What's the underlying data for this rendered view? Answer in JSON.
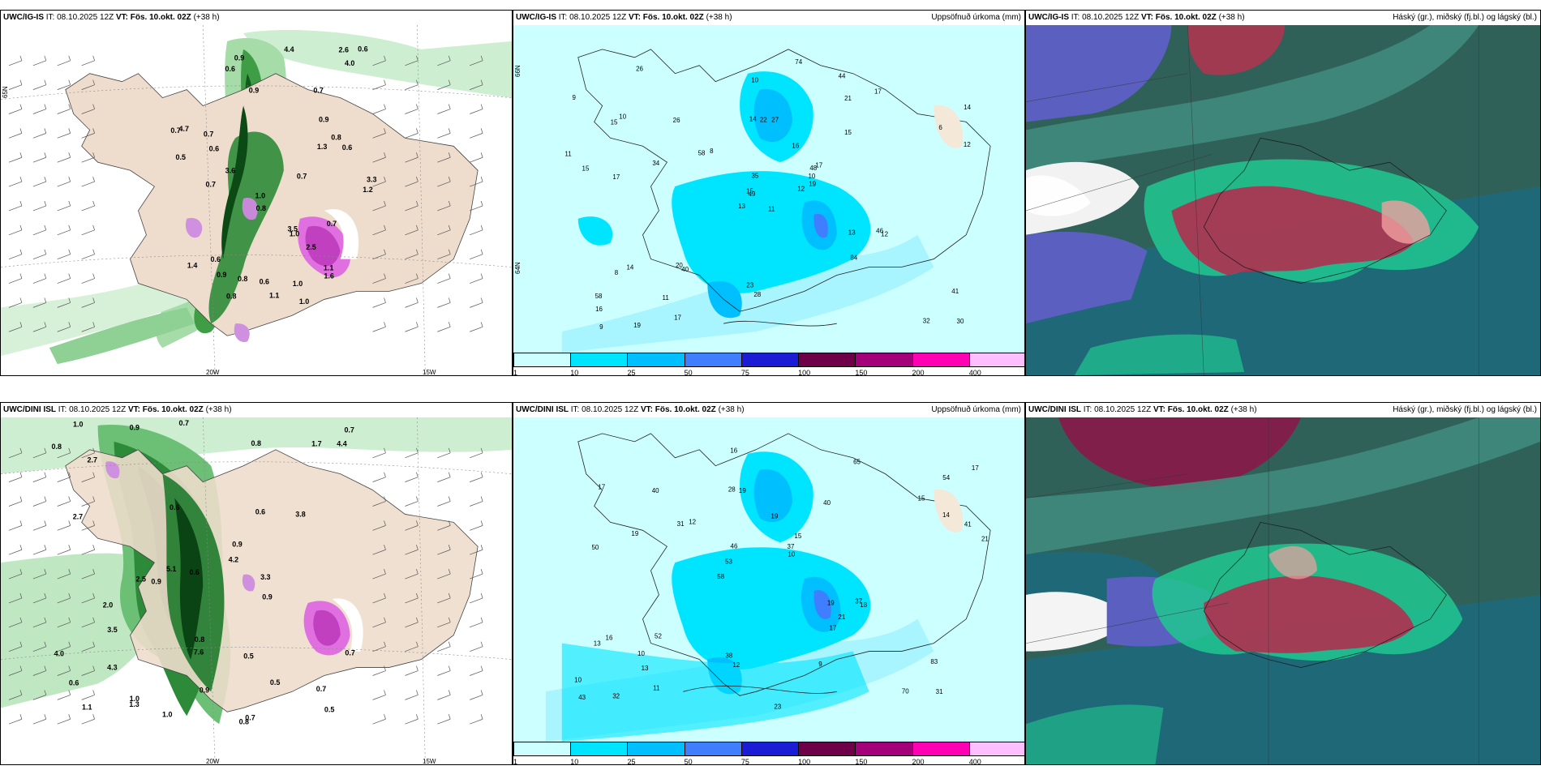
{
  "panels": {
    "top_left": {
      "model": "UWC/IG-IS",
      "it_label": "IT:",
      "it_value": "08.10.2025 12Z",
      "vt_label": "VT:",
      "vt_value": "Fös. 10.okt. 02Z",
      "lead": "(+38 h)",
      "right_title": ""
    },
    "top_mid": {
      "model": "UWC/IG-IS",
      "it_label": "IT:",
      "it_value": "08.10.2025 12Z",
      "vt_label": "VT:",
      "vt_value": "Fös. 10.okt. 02Z",
      "lead": "(+38 h)",
      "right_title": "Uppsöfnuð úrkoma (mm)"
    },
    "top_right": {
      "model": "UWC/IG-IS",
      "it_label": "IT:",
      "it_value": "08.10.2025 12Z",
      "vt_label": "VT:",
      "vt_value": "Fös. 10.okt. 02Z",
      "lead": "(+38 h)",
      "right_title": "Háský (gr.), miðský (fj.bl.) og lágský (bl.)"
    },
    "bot_left": {
      "model": "UWC/DINI ISL",
      "it_label": "IT:",
      "it_value": "08.10.2025 12Z",
      "vt_label": "VT:",
      "vt_value": "Fös. 10.okt. 02Z",
      "lead": "(+38 h)",
      "right_title": ""
    },
    "bot_mid": {
      "model": "UWC/DINI ISL",
      "it_label": "IT:",
      "it_value": "08.10.2025 12Z",
      "vt_label": "VT:",
      "vt_value": "Fös. 10.okt. 02Z",
      "lead": "(+38 h)",
      "right_title": "Uppsöfnuð úrkoma (mm)"
    },
    "bot_right": {
      "model": "UWC/DINI ISL",
      "it_label": "IT:",
      "it_value": "08.10.2025 12Z",
      "vt_label": "VT:",
      "vt_value": "Fös. 10.okt. 02Z",
      "lead": "(+38 h)",
      "right_title": "Háský (gr.), miðský (fj.bl.) og lágský (bl.)"
    }
  },
  "axes": {
    "lon_20w": "20W",
    "lon_15w": "15W",
    "lat_65n": "65N",
    "lat_64n": "64N",
    "lat_66n": "66N"
  },
  "precip_legend": {
    "ticks": [
      "1",
      "10",
      "25",
      "50",
      "75",
      "100",
      "150",
      "200",
      "400"
    ],
    "colors": [
      "#ccffff",
      "#00e5ff",
      "#00bfff",
      "#3f7fff",
      "#1c1cd6",
      "#6e0047",
      "#a3007a",
      "#ff00b3",
      "#ffbfff"
    ]
  },
  "precip_labels_top": [
    "11",
    "15",
    "49",
    "58",
    "48",
    "40",
    "44",
    "27",
    "21",
    "12",
    "26",
    "30",
    "17",
    "14",
    "13",
    "15",
    "19",
    "14",
    "16",
    "14",
    "8",
    "16",
    "11",
    "22",
    "17",
    "12",
    "10",
    "10",
    "15",
    "13",
    "12",
    "15",
    "23",
    "35",
    "26",
    "17",
    "20",
    "32",
    "41",
    "46",
    "74",
    "58",
    "34",
    "84",
    "17",
    "11",
    "10",
    "9",
    "28",
    "19",
    "8",
    "6",
    "9"
  ],
  "precip_labels_bot": [
    "31",
    "50",
    "54",
    "58",
    "40",
    "32",
    "28",
    "19",
    "16",
    "12",
    "10",
    "13",
    "19",
    "15",
    "18",
    "17",
    "16",
    "21",
    "19",
    "14",
    "53",
    "38",
    "46",
    "40",
    "65",
    "52",
    "70",
    "83",
    "37",
    "23",
    "31",
    "19",
    "17",
    "11",
    "41",
    "37",
    "43",
    "12",
    "10",
    "13",
    "15",
    "17",
    "21",
    "9",
    "10"
  ],
  "wind_vals_top": [
    "1.0",
    "0.6",
    "0.6",
    "0.7",
    "0.8",
    "1.0",
    "1.2",
    "3.6",
    "0.8",
    "0.9",
    "1.4",
    "0.7",
    "1.0",
    "3.5",
    "1.3",
    "2.6",
    "0.5",
    "4.0",
    "0.7",
    "0.6",
    "1.1",
    "1.0",
    "0.8",
    "1.6",
    "0.7",
    "0.9",
    "0.7",
    "0.6",
    "1.1",
    "0.9",
    "2.5",
    "0.6",
    "0.7",
    "0.8",
    "0.9",
    "0.6",
    "4.4",
    "4.7",
    "3.3"
  ],
  "wind_vals_bot": [
    "1.0",
    "0.8",
    "1.0",
    "0.5",
    "0.9",
    "2.7",
    "2.5",
    "0.5",
    "0.7",
    "0.6",
    "1.7",
    "0.9",
    "5.1",
    "7.6",
    "0.8",
    "4.2",
    "2.7",
    "1.3",
    "0.9",
    "0.8",
    "0.5",
    "0.7",
    "0.9",
    "1.1",
    "3.8",
    "2.0",
    "4.0",
    "3.5",
    "1.0",
    "0.9",
    "0.6",
    "0.7",
    "0.8",
    "4.4",
    "4.3",
    "3.3",
    "0.7",
    "0.6",
    "0.6",
    "0.7"
  ]
}
